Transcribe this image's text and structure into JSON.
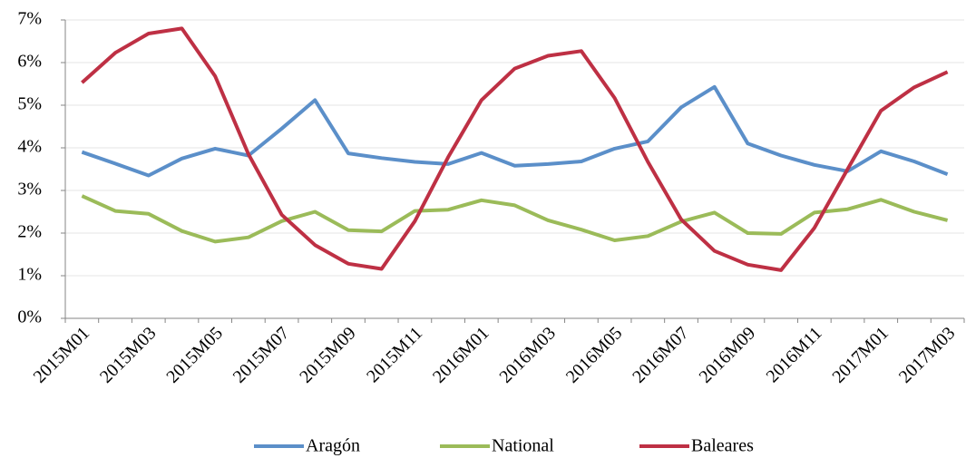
{
  "chart_data": {
    "type": "line",
    "categories": [
      "2015M01",
      null,
      "2015M03",
      null,
      "2015M05",
      null,
      "2015M07",
      null,
      "2015M09",
      null,
      "2015M11",
      null,
      "2016M01",
      null,
      "2016M03",
      null,
      "2016M05",
      null,
      "2016M07",
      null,
      "2016M09",
      null,
      "2016M11",
      null,
      "2017M01",
      null,
      "2017M03"
    ],
    "series": [
      {
        "name": "Aragón",
        "color": "#5b8fc9",
        "values": [
          3.9,
          3.63,
          3.35,
          3.75,
          3.98,
          3.82,
          4.45,
          5.12,
          3.87,
          3.76,
          3.67,
          3.62,
          3.88,
          3.58,
          3.62,
          3.68,
          3.98,
          4.15,
          4.95,
          5.43,
          4.1,
          3.82,
          3.6,
          3.45,
          3.92,
          3.68,
          3.38
        ]
      },
      {
        "name": "National",
        "color": "#9bbb59",
        "values": [
          2.87,
          2.52,
          2.45,
          2.05,
          1.8,
          1.9,
          2.28,
          2.5,
          2.07,
          2.04,
          2.52,
          2.55,
          2.77,
          2.65,
          2.3,
          2.08,
          1.83,
          1.93,
          2.27,
          2.48,
          2.0,
          1.98,
          2.48,
          2.56,
          2.78,
          2.5,
          2.3
        ]
      },
      {
        "name": "Baleares",
        "color": "#be3044",
        "values": [
          5.53,
          6.23,
          6.68,
          6.8,
          5.68,
          3.85,
          2.43,
          1.72,
          1.28,
          1.16,
          2.28,
          3.78,
          5.12,
          5.86,
          6.16,
          6.27,
          5.17,
          3.67,
          2.32,
          1.58,
          1.26,
          1.13,
          2.12,
          3.5,
          4.87,
          5.42,
          5.78
        ]
      }
    ],
    "ylim": [
      0,
      7
    ],
    "yticks": [
      {
        "value": 0,
        "label": "0%"
      },
      {
        "value": 1,
        "label": "1%"
      },
      {
        "value": 2,
        "label": "2%"
      },
      {
        "value": 3,
        "label": "3%"
      },
      {
        "value": 4,
        "label": "4%"
      },
      {
        "value": 5,
        "label": "5%"
      },
      {
        "value": 6,
        "label": "6%"
      },
      {
        "value": 7,
        "label": "7%"
      }
    ],
    "grid": true,
    "legend": "bottom"
  }
}
